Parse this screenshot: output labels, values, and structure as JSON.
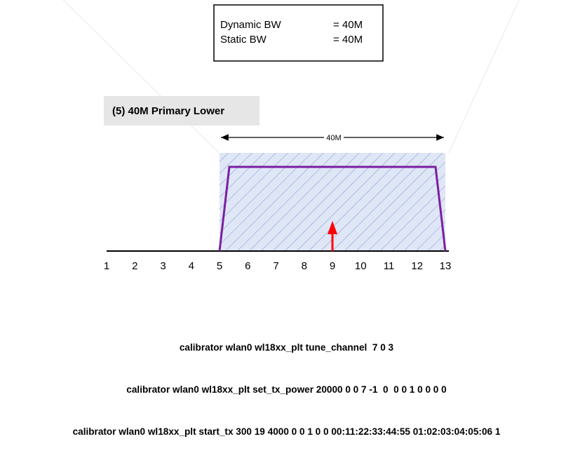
{
  "bw_box": {
    "dynamic_label": "Dynamic BW",
    "dynamic_value": "= 40M",
    "static_label": "Static BW",
    "static_value": "= 40M"
  },
  "title": "(5)  40M Primary Lower",
  "span_label": "40M",
  "channels": [
    1,
    2,
    3,
    4,
    5,
    6,
    7,
    8,
    9,
    10,
    11,
    12,
    13
  ],
  "band": {
    "start": 5,
    "end": 13
  },
  "signal": {
    "start": 5,
    "end": 13
  },
  "primary_channel": 9,
  "colors": {
    "band_fill": "#dfe6f6",
    "hatch": "#8ea4d2",
    "signal": "#7a1fa2",
    "arrow": "#ff0000",
    "title_bg": "#e6e6e6"
  },
  "commands": [
    "calibrator wlan0 wl18xx_plt tune_channel  7 0 3",
    "calibrator wlan0 wl18xx_plt set_tx_power 20000 0 0 7 -1  0  0 0 1 0 0 0 0",
    "calibrator wlan0 wl18xx_plt start_tx 300 19 4000 0 0 1 0 0 00:11:22:33:44:55 01:02:03:04:05:06 1"
  ]
}
